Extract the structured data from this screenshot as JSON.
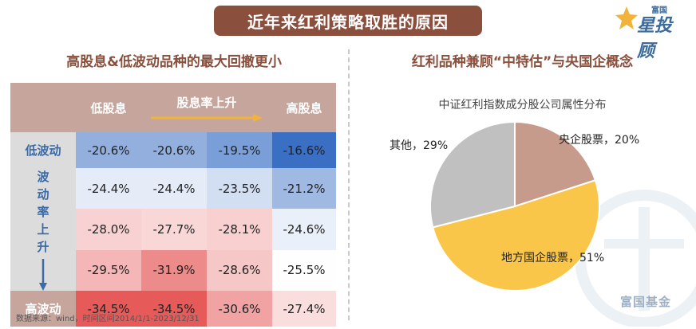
{
  "header": {
    "title": "近年来红利策略取胜的原因",
    "logo_small": "富国",
    "logo_big": "星投顾"
  },
  "left": {
    "title": "高股息&低波动品种的最大回撤更小",
    "col_headers": [
      "低股息",
      "股息率上升",
      "高股息"
    ],
    "side_label": "波动率上升",
    "row_top_label": "低波动",
    "row_bottom_label": "高波动",
    "source": "数据来源：wind，时间区间2014/1/1-2023/12/31"
  },
  "chart_data": [
    {
      "type": "heatmap",
      "title": "高股息&低波动品种的最大回撤更小",
      "x_labels": [
        "低股息",
        "",
        "",
        "高股息"
      ],
      "x_axis_label": "股息率上升",
      "y_labels": [
        "低波动",
        "",
        "",
        "",
        "高波动"
      ],
      "y_axis_label": "波动率上升",
      "values": [
        [
          "-20.6%",
          "-20.6%",
          "-19.5%",
          "-16.6%"
        ],
        [
          "-24.4%",
          "-24.4%",
          "-23.5%",
          "-21.2%"
        ],
        [
          "-28.0%",
          "-27.7%",
          "-28.1%",
          "-24.6%"
        ],
        [
          "-29.5%",
          "-31.9%",
          "-28.6%",
          "-25.5%"
        ],
        [
          "-34.5%",
          "-34.5%",
          "-30.6%",
          "-27.4%"
        ]
      ],
      "numeric": [
        [
          -20.6,
          -20.6,
          -19.5,
          -16.6
        ],
        [
          -24.4,
          -24.4,
          -23.5,
          -21.2
        ],
        [
          -28.0,
          -27.7,
          -28.1,
          -24.6
        ],
        [
          -29.5,
          -31.9,
          -28.6,
          -25.5
        ],
        [
          -34.5,
          -34.5,
          -30.6,
          -27.4
        ]
      ],
      "colors": {
        "low": "#e65a5a",
        "mid": "#ffffff",
        "high": "#3a6fc4"
      }
    },
    {
      "type": "pie",
      "title": "中证红利指数成分股公司属性分布",
      "slices": [
        {
          "label": "央企股票",
          "value": 20,
          "text": "央企股票，20%",
          "color": "#c79b8c"
        },
        {
          "label": "地方国企股票",
          "value": 51,
          "text": "地方国企股票，51%",
          "color": "#fac64a"
        },
        {
          "label": "其他",
          "value": 29,
          "text": "其他，29%",
          "color": "#c0c0c0"
        }
      ]
    }
  ],
  "right": {
    "title": "红利品种兼顾“中特估”与央国企概念",
    "watermark": "富国基金"
  }
}
